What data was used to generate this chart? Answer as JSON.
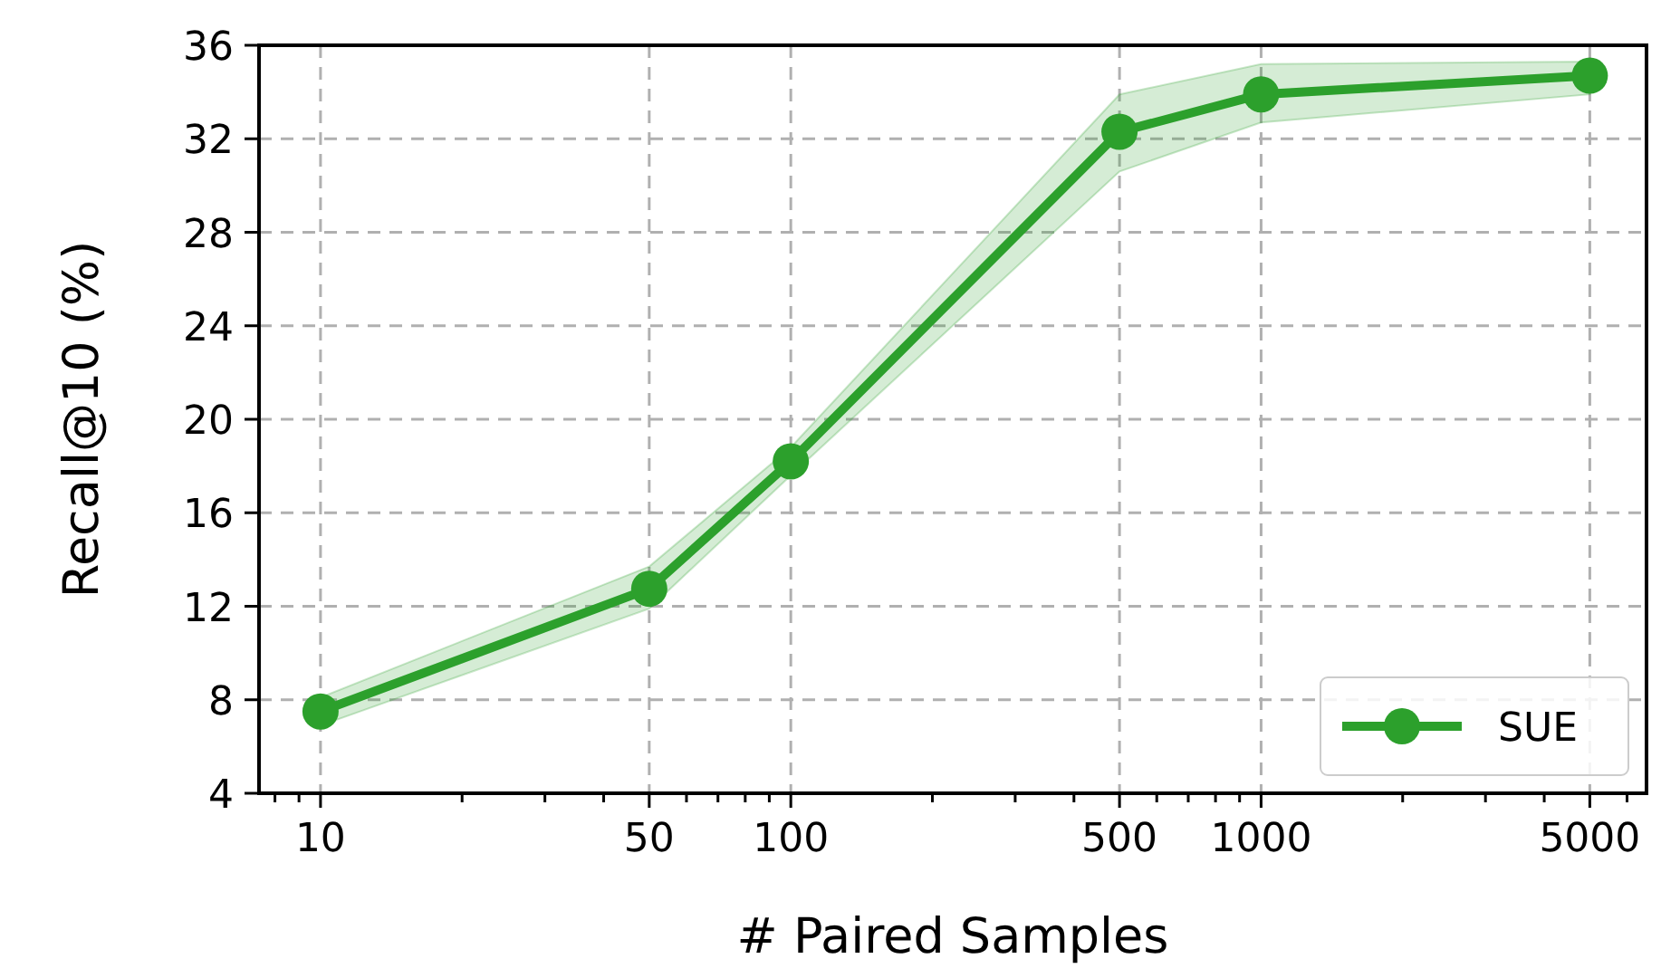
{
  "chart_data": {
    "type": "line",
    "xlabel": "# Paired Samples",
    "ylabel": "Recall@10 (%)",
    "log": "x",
    "x": [
      10,
      50,
      100,
      500,
      1000,
      5000
    ],
    "series": [
      {
        "name": "SUE",
        "color": "#2ca02c",
        "values": [
          7.5,
          12.75,
          18.2,
          32.3,
          33.9,
          34.7
        ],
        "lower": [
          6.9,
          11.9,
          17.6,
          30.6,
          32.7,
          33.9
        ],
        "upper": [
          8.1,
          13.7,
          18.8,
          33.9,
          35.2,
          35.3
        ]
      }
    ],
    "xlim": [
      7.4,
      6600
    ],
    "xticks": [
      {
        "value": 8,
        "label": null
      },
      {
        "value": 9,
        "label": null
      },
      10,
      {
        "value": 20,
        "label": null
      },
      {
        "value": 30,
        "label": null
      },
      {
        "value": 40,
        "label": null
      },
      50,
      {
        "value": 60,
        "label": null
      },
      {
        "value": 70,
        "label": null
      },
      {
        "value": 80,
        "label": null
      },
      {
        "value": 90,
        "label": null
      },
      100,
      {
        "value": 200,
        "label": null
      },
      {
        "value": 300,
        "label": null
      },
      {
        "value": 400,
        "label": null
      },
      500,
      {
        "value": 600,
        "label": null
      },
      {
        "value": 700,
        "label": null
      },
      {
        "value": 800,
        "label": null
      },
      {
        "value": 900,
        "label": null
      },
      1000,
      {
        "value": 2000,
        "label": null
      },
      {
        "value": 3000,
        "label": null
      },
      {
        "value": 4000,
        "label": null
      },
      5000,
      {
        "value": 6000,
        "label": null
      }
    ],
    "ylim": [
      4,
      36
    ],
    "yticks": [
      4,
      8,
      12,
      16,
      20,
      24,
      28,
      32,
      36
    ],
    "grid": true,
    "legend": "bottom right",
    "marker": "circle",
    "line_style": "solid"
  }
}
